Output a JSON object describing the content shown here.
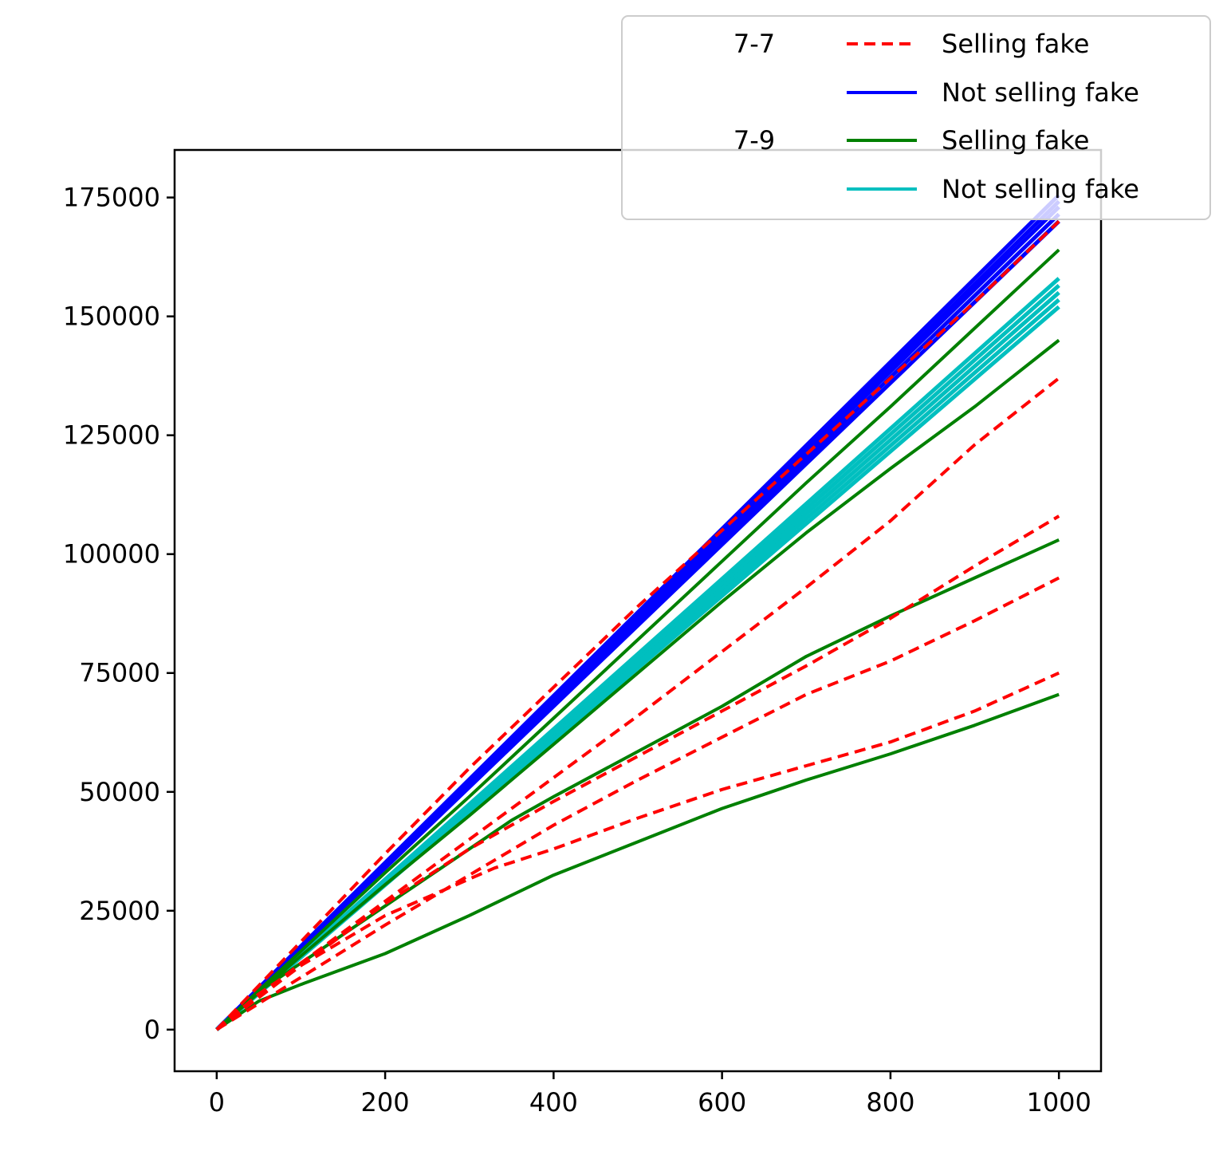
{
  "chart_data": {
    "type": "line",
    "title": "",
    "xlabel": "",
    "ylabel": "",
    "xlim": [
      -50,
      1050
    ],
    "ylim": [
      -8750,
      185000
    ],
    "xticks": [
      0,
      200,
      400,
      600,
      800,
      1000
    ],
    "yticks": [
      0,
      25000,
      50000,
      75000,
      100000,
      125000,
      150000,
      175000
    ],
    "grid": false,
    "legend": {
      "placement": "top-right",
      "groups": [
        {
          "label": "7-7",
          "entries": [
            {
              "label": "Selling fake",
              "color": "#ff0000",
              "style": "dashed"
            },
            {
              "label": "Not selling fake",
              "color": "#0000ff",
              "style": "solid"
            }
          ]
        },
        {
          "label": "7-9",
          "entries": [
            {
              "label": "Selling fake",
              "color": "#008000",
              "style": "solid"
            },
            {
              "label": "Not selling fake",
              "color": "#00bfbf",
              "style": "solid"
            }
          ]
        }
      ]
    },
    "series": [
      {
        "color": "#0000ff",
        "style": "solid",
        "x": [
          0,
          1000
        ],
        "y": [
          0,
          170000
        ]
      },
      {
        "color": "#0000ff",
        "style": "solid",
        "x": [
          0,
          1000
        ],
        "y": [
          0,
          171500
        ]
      },
      {
        "color": "#0000ff",
        "style": "solid",
        "x": [
          0,
          1000
        ],
        "y": [
          0,
          173000
        ]
      },
      {
        "color": "#0000ff",
        "style": "solid",
        "x": [
          0,
          1000
        ],
        "y": [
          0,
          174200
        ]
      },
      {
        "color": "#0000ff",
        "style": "solid",
        "x": [
          0,
          1000
        ],
        "y": [
          0,
          175500
        ]
      },
      {
        "color": "#00bfbf",
        "style": "solid",
        "x": [
          0,
          1000
        ],
        "y": [
          0,
          152000
        ]
      },
      {
        "color": "#00bfbf",
        "style": "solid",
        "x": [
          0,
          1000
        ],
        "y": [
          0,
          153500
        ]
      },
      {
        "color": "#00bfbf",
        "style": "solid",
        "x": [
          0,
          1000
        ],
        "y": [
          0,
          155000
        ]
      },
      {
        "color": "#00bfbf",
        "style": "solid",
        "x": [
          0,
          1000
        ],
        "y": [
          0,
          156500
        ]
      },
      {
        "color": "#00bfbf",
        "style": "solid",
        "x": [
          0,
          1000
        ],
        "y": [
          0,
          158000
        ]
      },
      {
        "color": "#008000",
        "style": "solid",
        "x": [
          0,
          100,
          200,
          300,
          400,
          500,
          600,
          700,
          800,
          900,
          1000
        ],
        "y": [
          0,
          16500,
          33000,
          49000,
          65500,
          82000,
          98500,
          115000,
          131000,
          147500,
          164000
        ]
      },
      {
        "color": "#008000",
        "style": "solid",
        "x": [
          0,
          100,
          200,
          300,
          400,
          500,
          600,
          700,
          800,
          900,
          1000
        ],
        "y": [
          0,
          15500,
          30500,
          45000,
          60000,
          75000,
          90000,
          104500,
          118000,
          131000,
          145000
        ]
      },
      {
        "color": "#008000",
        "style": "solid",
        "x": [
          0,
          50,
          100,
          200,
          300,
          350,
          400,
          500,
          600,
          700,
          800,
          900,
          1000
        ],
        "y": [
          0,
          8000,
          14000,
          26000,
          38000,
          44000,
          49000,
          58500,
          68000,
          78500,
          87000,
          95000,
          103000
        ]
      },
      {
        "color": "#008000",
        "style": "solid",
        "x": [
          0,
          50,
          100,
          200,
          300,
          400,
          500,
          600,
          650,
          700,
          800,
          900,
          1000
        ],
        "y": [
          0,
          6000,
          9500,
          16000,
          24000,
          32500,
          39500,
          46500,
          49500,
          52500,
          58000,
          64000,
          70500
        ]
      },
      {
        "color": "#ff0000",
        "style": "dashed",
        "x": [
          0,
          100,
          200,
          300,
          400,
          500,
          600,
          700,
          800,
          900,
          1000
        ],
        "y": [
          0,
          18500,
          37000,
          55000,
          72000,
          89000,
          105000,
          121000,
          137000,
          153000,
          170000
        ]
      },
      {
        "color": "#ff0000",
        "style": "dashed",
        "x": [
          0,
          100,
          200,
          300,
          400,
          500,
          600,
          700,
          800,
          900,
          1000
        ],
        "y": [
          0,
          14000,
          27000,
          40000,
          53000,
          66000,
          79500,
          93000,
          107000,
          123000,
          137000
        ]
      },
      {
        "color": "#ff0000",
        "style": "dashed",
        "x": [
          0,
          100,
          200,
          300,
          400,
          500,
          600,
          700,
          800,
          900,
          1000
        ],
        "y": [
          0,
          13500,
          26500,
          38000,
          48000,
          57500,
          67000,
          76500,
          86500,
          97500,
          108000
        ]
      },
      {
        "color": "#ff0000",
        "style": "dashed",
        "x": [
          0,
          100,
          200,
          300,
          400,
          500,
          600,
          700,
          800,
          900,
          1000
        ],
        "y": [
          0,
          11000,
          22000,
          32500,
          43000,
          52500,
          61500,
          70500,
          77500,
          86000,
          95000
        ]
      },
      {
        "color": "#ff0000",
        "style": "dashed",
        "x": [
          0,
          50,
          100,
          200,
          330,
          400,
          500,
          600,
          700,
          800,
          900,
          1000
        ],
        "y": [
          0,
          7500,
          13500,
          24000,
          34000,
          38000,
          44500,
          50500,
          55500,
          60500,
          67000,
          75000
        ]
      }
    ]
  }
}
